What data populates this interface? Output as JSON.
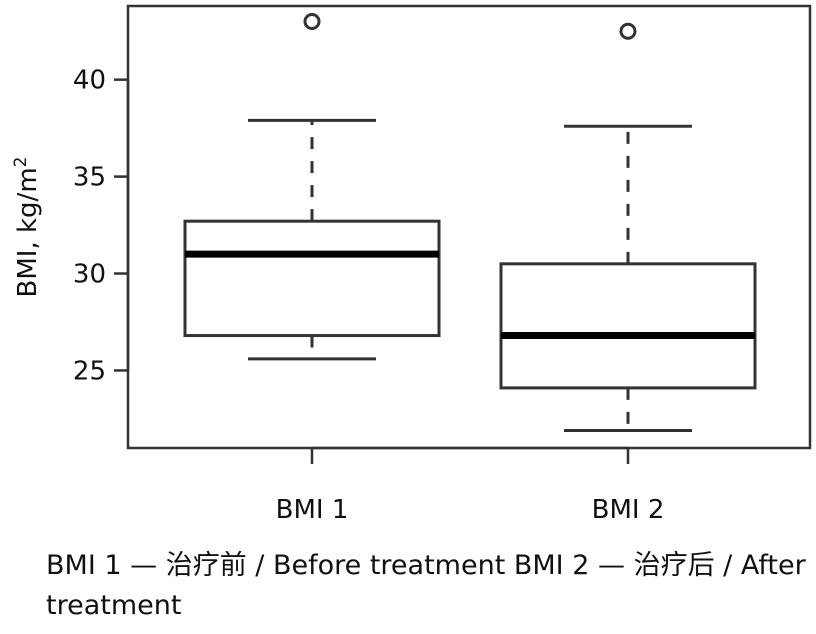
{
  "chart_data": {
    "type": "boxplot",
    "ylabel": "BMI, kg/m",
    "ylabel_superscript": "2",
    "ylim": [
      21,
      43.8
    ],
    "y_ticks": [
      25,
      30,
      35,
      40
    ],
    "y_tick_labels": [
      "25",
      "30",
      "35",
      "40"
    ],
    "categories": [
      "BMI 1",
      "BMI 2"
    ],
    "boxes": [
      {
        "whisker_low": 25.6,
        "q1": 26.8,
        "median": 31.0,
        "q3": 32.7,
        "whisker_high": 37.9,
        "outliers": [
          43.0
        ]
      },
      {
        "whisker_low": 21.9,
        "q1": 24.1,
        "median": 26.8,
        "q3": 30.5,
        "whisker_high": 37.6,
        "outliers": [
          42.5
        ]
      }
    ],
    "grid": false,
    "legend": "none"
  },
  "caption": "BMI 1 — 治疗前 / Before treatment BMI 2 — 治疗后 / After treatment"
}
